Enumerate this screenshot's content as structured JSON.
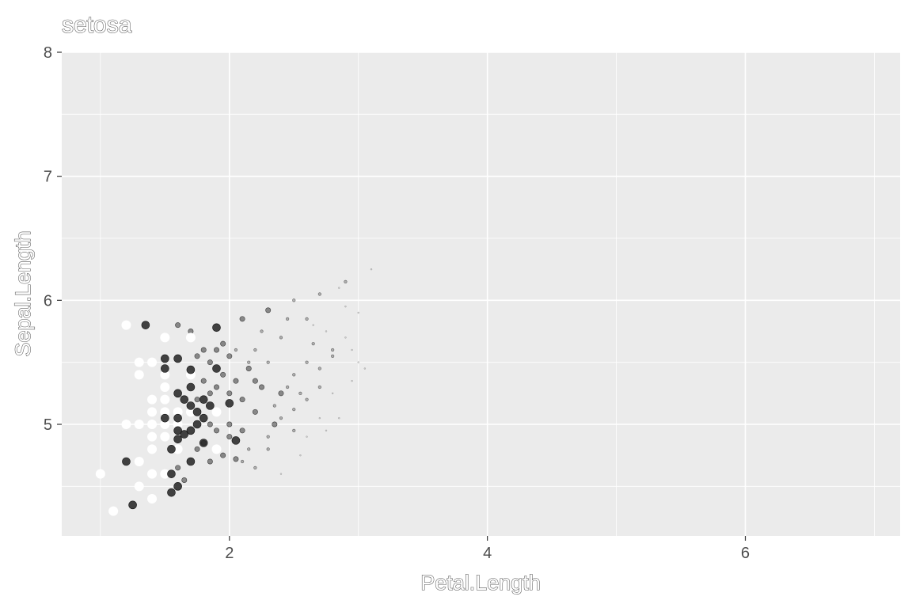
{
  "chart_data": {
    "type": "scatter",
    "title": "setosa",
    "xlabel": "Petal.Length",
    "ylabel": "Sepal.Length",
    "xlim": [
      0.7,
      7.2
    ],
    "ylim": [
      4.1,
      8.0
    ],
    "x_ticks": [
      2,
      4,
      6
    ],
    "y_ticks": [
      5,
      6,
      7,
      8
    ],
    "grid": true,
    "legend": "none",
    "colors": {
      "panel": "#ebebeb",
      "grid": "#ffffff",
      "axis_text": "#4d4d4d"
    },
    "series": [
      {
        "style": "white-large",
        "fill": "#ffffff",
        "opacity": 1.0,
        "points": [
          [
            1.0,
            4.6
          ],
          [
            1.1,
            4.3
          ],
          [
            1.2,
            5.8
          ],
          [
            1.2,
            5.0
          ],
          [
            1.3,
            5.5
          ],
          [
            1.3,
            5.4
          ],
          [
            1.3,
            5.0
          ],
          [
            1.3,
            4.7
          ],
          [
            1.3,
            4.5
          ],
          [
            1.4,
            5.5
          ],
          [
            1.4,
            5.2
          ],
          [
            1.4,
            5.1
          ],
          [
            1.4,
            5.0
          ],
          [
            1.4,
            4.9
          ],
          [
            1.4,
            4.8
          ],
          [
            1.4,
            4.6
          ],
          [
            1.4,
            4.4
          ],
          [
            1.5,
            5.7
          ],
          [
            1.5,
            5.4
          ],
          [
            1.5,
            5.3
          ],
          [
            1.5,
            5.2
          ],
          [
            1.5,
            5.1
          ],
          [
            1.5,
            5.0
          ],
          [
            1.5,
            4.9
          ],
          [
            1.5,
            4.6
          ],
          [
            1.6,
            5.0
          ],
          [
            1.6,
            4.8
          ],
          [
            1.6,
            5.1
          ],
          [
            1.7,
            5.7
          ],
          [
            1.7,
            5.4
          ],
          [
            1.7,
            5.1
          ],
          [
            1.9,
            5.1
          ],
          [
            1.9,
            4.8
          ]
        ]
      },
      {
        "style": "dark-large",
        "fill": "#222222",
        "opacity": 0.85,
        "points": [
          [
            1.2,
            4.7
          ],
          [
            1.25,
            4.35
          ],
          [
            1.35,
            5.8
          ],
          [
            1.5,
            5.45
          ],
          [
            1.5,
            5.53
          ],
          [
            1.5,
            5.05
          ],
          [
            1.55,
            4.45
          ],
          [
            1.55,
            4.8
          ],
          [
            1.55,
            4.6
          ],
          [
            1.6,
            5.53
          ],
          [
            1.6,
            5.25
          ],
          [
            1.6,
            5.05
          ],
          [
            1.6,
            4.95
          ],
          [
            1.6,
            4.88
          ],
          [
            1.6,
            4.5
          ],
          [
            1.65,
            5.2
          ],
          [
            1.65,
            4.92
          ],
          [
            1.7,
            5.44
          ],
          [
            1.7,
            5.3
          ],
          [
            1.7,
            5.15
          ],
          [
            1.7,
            4.95
          ],
          [
            1.7,
            4.7
          ],
          [
            1.75,
            5.0
          ],
          [
            1.75,
            5.1
          ],
          [
            1.8,
            5.2
          ],
          [
            1.8,
            5.05
          ],
          [
            1.8,
            4.85
          ],
          [
            1.85,
            5.15
          ],
          [
            1.9,
            5.78
          ],
          [
            1.9,
            5.45
          ],
          [
            2.0,
            5.17
          ],
          [
            2.05,
            4.87
          ]
        ]
      },
      {
        "style": "medium",
        "fill": "#444444",
        "opacity": 0.6,
        "points": [
          [
            1.6,
            5.8
          ],
          [
            1.7,
            5.75
          ],
          [
            1.6,
            4.65
          ],
          [
            1.65,
            4.55
          ],
          [
            1.75,
            5.55
          ],
          [
            1.75,
            4.8
          ],
          [
            1.8,
            5.6
          ],
          [
            1.8,
            5.35
          ],
          [
            1.85,
            5.5
          ],
          [
            1.85,
            5.0
          ],
          [
            1.85,
            4.7
          ],
          [
            1.9,
            5.6
          ],
          [
            1.9,
            5.3
          ],
          [
            1.9,
            4.95
          ],
          [
            1.95,
            5.4
          ],
          [
            1.95,
            4.75
          ],
          [
            2.0,
            5.55
          ],
          [
            2.0,
            5.25
          ],
          [
            2.0,
            5.0
          ],
          [
            2.05,
            5.35
          ],
          [
            2.1,
            5.85
          ],
          [
            2.1,
            5.2
          ],
          [
            2.15,
            5.45
          ],
          [
            2.2,
            5.1
          ],
          [
            2.25,
            5.3
          ],
          [
            2.3,
            5.92
          ],
          [
            2.35,
            5.0
          ],
          [
            2.4,
            5.25
          ],
          [
            1.8,
            4.85
          ],
          [
            2.0,
            4.9
          ],
          [
            1.95,
            5.65
          ],
          [
            2.1,
            4.95
          ],
          [
            2.2,
            5.35
          ],
          [
            1.85,
            5.25
          ],
          [
            1.75,
            5.2
          ],
          [
            2.05,
            4.72
          ]
        ]
      },
      {
        "style": "small",
        "fill": "#666666",
        "opacity": 0.45,
        "points": [
          [
            2.2,
            5.6
          ],
          [
            2.3,
            5.5
          ],
          [
            2.4,
            5.7
          ],
          [
            2.5,
            5.4
          ],
          [
            2.5,
            6.0
          ],
          [
            2.6,
            5.5
          ],
          [
            2.6,
            5.85
          ],
          [
            2.7,
            6.05
          ],
          [
            2.7,
            5.3
          ],
          [
            2.8,
            5.6
          ],
          [
            2.9,
            6.15
          ],
          [
            2.3,
            4.8
          ],
          [
            2.4,
            5.05
          ],
          [
            2.5,
            4.95
          ],
          [
            2.6,
            5.2
          ],
          [
            2.2,
            4.65
          ],
          [
            2.3,
            4.9
          ],
          [
            2.1,
            4.7
          ],
          [
            2.45,
            5.3
          ],
          [
            2.55,
            5.25
          ],
          [
            2.7,
            5.45
          ],
          [
            2.15,
            5.5
          ],
          [
            2.35,
            5.15
          ],
          [
            2.65,
            5.65
          ],
          [
            2.8,
            5.55
          ],
          [
            2.25,
            5.75
          ],
          [
            2.45,
            5.85
          ],
          [
            2.05,
            5.6
          ],
          [
            2.15,
            4.8
          ],
          [
            2.5,
            5.12
          ]
        ]
      },
      {
        "style": "tiny",
        "fill": "#999999",
        "opacity": 0.35,
        "points": [
          [
            2.9,
            5.7
          ],
          [
            3.0,
            5.9
          ],
          [
            3.1,
            6.25
          ],
          [
            2.95,
            5.35
          ],
          [
            2.85,
            5.05
          ],
          [
            2.75,
            5.75
          ],
          [
            3.0,
            5.5
          ],
          [
            2.8,
            5.25
          ],
          [
            2.9,
            5.95
          ],
          [
            2.6,
            4.9
          ],
          [
            2.7,
            5.05
          ],
          [
            2.55,
            4.75
          ],
          [
            2.4,
            4.6
          ],
          [
            2.65,
            5.8
          ],
          [
            2.85,
            6.1
          ],
          [
            2.95,
            5.6
          ],
          [
            3.05,
            5.45
          ],
          [
            2.75,
            4.95
          ]
        ]
      }
    ]
  }
}
